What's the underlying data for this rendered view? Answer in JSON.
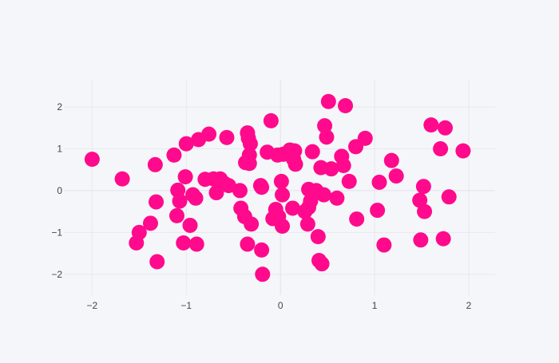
{
  "chart_data": {
    "type": "scatter",
    "title": "",
    "xlabel": "",
    "ylabel": "",
    "xlim": [
      -2.3,
      2.28
    ],
    "ylim": [
      -2.5,
      2.65
    ],
    "x_ticks": [
      -2,
      -1,
      0,
      1,
      2
    ],
    "x_tick_labels": [
      "−2",
      "−1",
      "0",
      "1",
      "2"
    ],
    "y_ticks": [
      -2,
      -1,
      0,
      1,
      2
    ],
    "y_tick_labels": [
      "−2",
      "−1",
      "0",
      "1",
      "2"
    ],
    "grid": true,
    "legend": "none",
    "marker_color": "#ff0a8c",
    "points": [
      [
        -2.0,
        0.75
      ],
      [
        -1.68,
        0.28
      ],
      [
        -1.53,
        -1.25
      ],
      [
        -1.5,
        -1.0
      ],
      [
        -1.38,
        -0.78
      ],
      [
        -1.31,
        -1.7
      ],
      [
        -1.32,
        -0.27
      ],
      [
        -1.33,
        0.62
      ],
      [
        -1.13,
        0.85
      ],
      [
        -1.1,
        -0.6
      ],
      [
        -1.09,
        0.01
      ],
      [
        -1.07,
        -0.25
      ],
      [
        -1.03,
        -1.25
      ],
      [
        -1.0,
        1.12
      ],
      [
        -1.01,
        0.33
      ],
      [
        -0.96,
        -0.83
      ],
      [
        -0.93,
        -0.1
      ],
      [
        -0.9,
        -0.18
      ],
      [
        -0.89,
        -1.28
      ],
      [
        -0.87,
        1.22
      ],
      [
        -0.8,
        0.27
      ],
      [
        -0.76,
        1.35
      ],
      [
        -0.71,
        0.28
      ],
      [
        -0.68,
        -0.05
      ],
      [
        -0.64,
        0.28
      ],
      [
        -0.6,
        0.18
      ],
      [
        -0.57,
        1.27
      ],
      [
        -0.55,
        0.12
      ],
      [
        -0.43,
        0.0
      ],
      [
        -0.42,
        -0.42
      ],
      [
        -0.38,
        -0.62
      ],
      [
        -0.37,
        0.67
      ],
      [
        -0.35,
        1.38
      ],
      [
        -0.34,
        1.25
      ],
      [
        -0.33,
        0.85
      ],
      [
        -0.33,
        0.65
      ],
      [
        -0.32,
        1.12
      ],
      [
        -0.31,
        -0.8
      ],
      [
        -0.35,
        -1.28
      ],
      [
        -0.21,
        0.12
      ],
      [
        -0.2,
        0.08
      ],
      [
        -0.2,
        -1.42
      ],
      [
        -0.19,
        -2.0
      ],
      [
        -0.14,
        0.92
      ],
      [
        -0.1,
        1.67
      ],
      [
        -0.08,
        -0.67
      ],
      [
        -0.05,
        -0.45
      ],
      [
        -0.03,
        0.85
      ],
      [
        -0.02,
        -0.62
      ],
      [
        0.01,
        0.22
      ],
      [
        0.02,
        -0.1
      ],
      [
        0.02,
        -0.85
      ],
      [
        0.03,
        0.87
      ],
      [
        0.08,
        0.9
      ],
      [
        0.1,
        0.97
      ],
      [
        0.13,
        -0.42
      ],
      [
        0.14,
        0.75
      ],
      [
        0.15,
        0.95
      ],
      [
        0.16,
        0.63
      ],
      [
        0.26,
        -0.5
      ],
      [
        0.29,
        -0.8
      ],
      [
        0.3,
        -0.4
      ],
      [
        0.3,
        0.03
      ],
      [
        0.32,
        -0.25
      ],
      [
        0.34,
        0.93
      ],
      [
        0.38,
        0.0
      ],
      [
        0.4,
        -1.1
      ],
      [
        0.41,
        -1.67
      ],
      [
        0.43,
        0.55
      ],
      [
        0.44,
        -1.75
      ],
      [
        0.46,
        -0.1
      ],
      [
        0.47,
        1.55
      ],
      [
        0.49,
        1.28
      ],
      [
        0.51,
        2.13
      ],
      [
        0.54,
        0.52
      ],
      [
        0.6,
        -0.18
      ],
      [
        0.65,
        0.82
      ],
      [
        0.67,
        0.6
      ],
      [
        0.69,
        2.03
      ],
      [
        0.73,
        0.22
      ],
      [
        0.8,
        1.05
      ],
      [
        0.81,
        -0.68
      ],
      [
        0.9,
        1.25
      ],
      [
        1.03,
        -0.47
      ],
      [
        1.05,
        0.2
      ],
      [
        1.1,
        -1.3
      ],
      [
        1.18,
        0.72
      ],
      [
        1.23,
        0.35
      ],
      [
        1.48,
        -0.23
      ],
      [
        1.49,
        -1.18
      ],
      [
        1.52,
        0.1
      ],
      [
        1.53,
        -0.5
      ],
      [
        1.6,
        1.57
      ],
      [
        1.7,
        1.0
      ],
      [
        1.73,
        -1.15
      ],
      [
        1.75,
        1.5
      ],
      [
        1.79,
        -0.15
      ],
      [
        1.94,
        0.95
      ]
    ]
  }
}
